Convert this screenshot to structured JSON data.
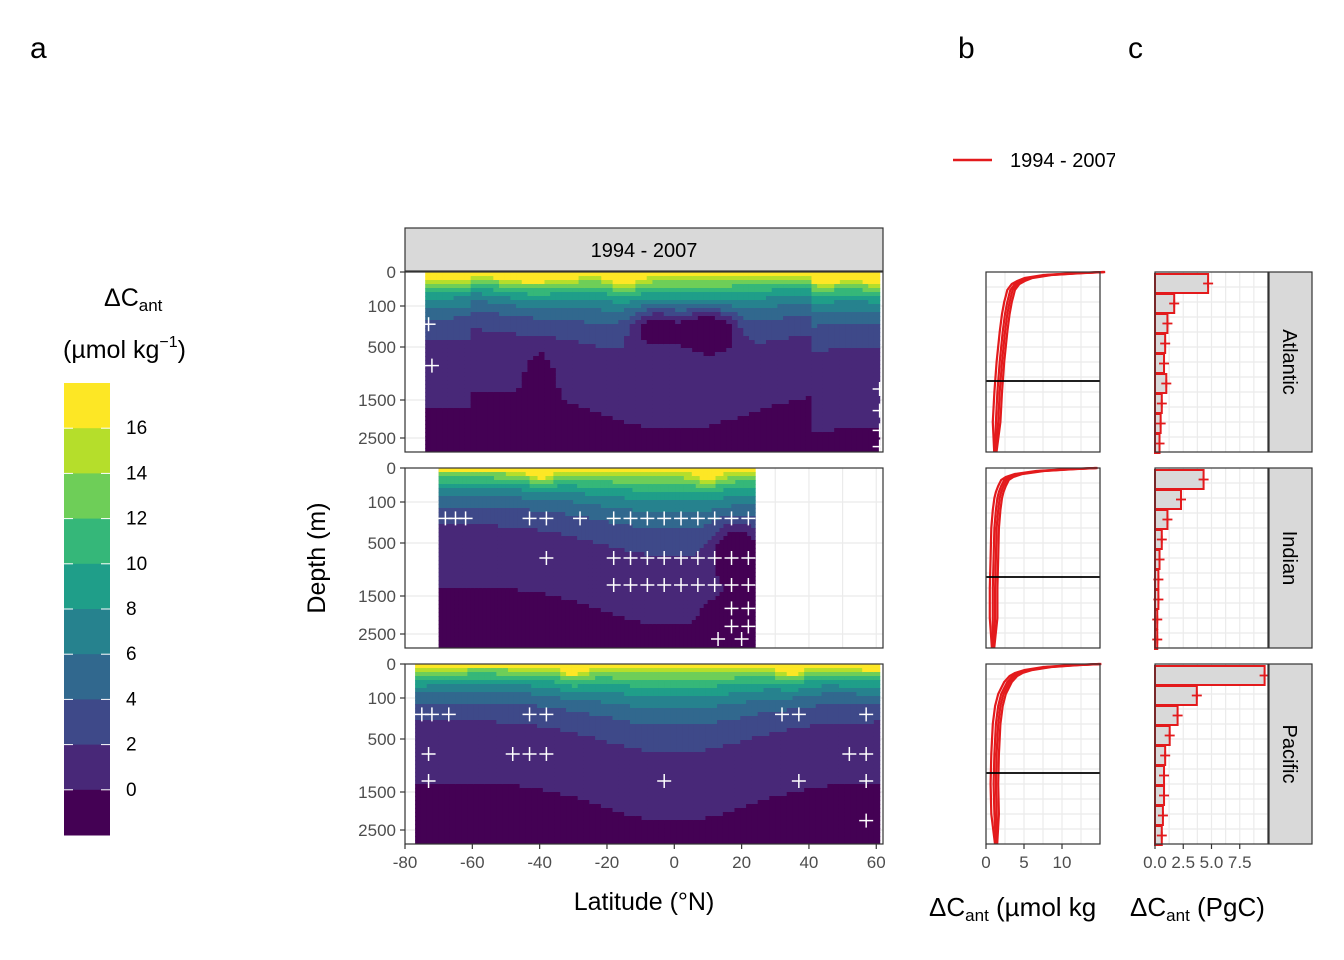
{
  "panel_labels": {
    "a": "a",
    "b": "b",
    "c": "c"
  },
  "colorbar": {
    "title_main": "ΔC",
    "title_sub": "ant",
    "unit_prefix": "(µmol kg",
    "unit_exp": "−1",
    "unit_suffix": ")",
    "labels": [
      "16",
      "14",
      "12",
      "10",
      "8",
      "6",
      "4",
      "2",
      "0"
    ],
    "colors": [
      "#fde725",
      "#b5de2b",
      "#6ece58",
      "#35b779",
      "#1f9e89",
      "#26828e",
      "#31688e",
      "#3e4989",
      "#482878",
      "#440154"
    ]
  },
  "legend_b": {
    "label": "1994 - 2007",
    "color": "#e31a1c"
  },
  "strip_top": "1994 - 2007",
  "basins": [
    "Atlantic",
    "Indian",
    "Pacific"
  ],
  "axis_a": {
    "ylabel": "Depth (m)",
    "xlabel": "Latitude (°N)",
    "xticks": [
      "-80",
      "-60",
      "-40",
      "-20",
      "0",
      "20",
      "40",
      "60"
    ],
    "yticks": [
      "0",
      "100",
      "500",
      "1500",
      "2500"
    ]
  },
  "axis_b": {
    "xticks": [
      "0",
      "5",
      "10"
    ],
    "xlabel_main": "ΔC",
    "xlabel_sub": "ant",
    "xlabel_rest": " (µmol kg"
  },
  "axis_c": {
    "xticks": [
      "0.0",
      "2.5",
      "5.0",
      "7.5"
    ],
    "xlabel_main": "ΔC",
    "xlabel_sub": "ant",
    "xlabel_rest": " (PgC)"
  },
  "chart_data": [
    {
      "type": "heatmap",
      "panel": "a",
      "x": "latitude (°N)",
      "xlim": [
        -80,
        62
      ],
      "depth_ticks": [
        0,
        100,
        500,
        1500,
        2500
      ],
      "legend_bins": [
        0,
        2,
        4,
        6,
        8,
        10,
        12,
        14,
        16
      ]
    },
    {
      "type": "line",
      "panel": "b",
      "xlim": [
        0,
        15
      ],
      "series": [
        {
          "name": "1994 - 2007",
          "basin": "Atlantic",
          "depth": [
            0,
            20,
            50,
            100,
            150,
            200,
            300,
            400,
            500,
            700,
            1000,
            1500,
            2000,
            2500,
            3000
          ],
          "values": [
            15.5,
            12,
            8,
            5.5,
            4.5,
            3.8,
            3.2,
            3.0,
            2.8,
            2.5,
            2.2,
            1.8,
            1.5,
            1.3,
            1.2
          ]
        },
        {
          "name": "1994 - 2007",
          "basin": "Indian",
          "depth": [
            0,
            20,
            50,
            100,
            150,
            200,
            300,
            400,
            500,
            700,
            1000,
            1500,
            2000,
            2500,
            3000
          ],
          "values": [
            14.5,
            11,
            7,
            4.2,
            3.0,
            2.4,
            2.0,
            1.7,
            1.5,
            1.3,
            1.1,
            1.0,
            0.9,
            0.9,
            0.9
          ]
        },
        {
          "name": "1994 - 2007",
          "basin": "Pacific",
          "depth": [
            0,
            20,
            50,
            100,
            150,
            200,
            300,
            400,
            500,
            700,
            1000,
            1500,
            2000,
            2500,
            3000
          ],
          "values": [
            15,
            11.5,
            8,
            5.5,
            4.2,
            3.5,
            2.8,
            2.4,
            2.0,
            1.6,
            1.3,
            1.1,
            1.0,
            1.1,
            1.3
          ]
        }
      ]
    },
    {
      "type": "bar",
      "panel": "c",
      "xlim": [
        0,
        10
      ],
      "series": [
        {
          "name": "1994 - 2007",
          "basin": "Atlantic",
          "values": [
            4.7,
            1.7,
            1.1,
            0.9,
            0.8,
            1.0,
            0.6,
            0.5,
            0.4
          ]
        },
        {
          "name": "1994 - 2007",
          "basin": "Indian",
          "values": [
            4.3,
            2.3,
            1.1,
            0.6,
            0.4,
            0.3,
            0.3,
            0.2,
            0.2
          ]
        },
        {
          "name": "1994 - 2007",
          "basin": "Pacific",
          "values": [
            9.7,
            3.7,
            2.0,
            1.3,
            0.9,
            0.8,
            0.8,
            0.7,
            0.6
          ]
        }
      ]
    }
  ]
}
